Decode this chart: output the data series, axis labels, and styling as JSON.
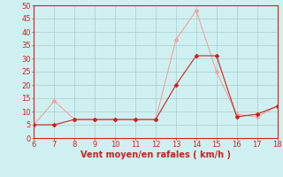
{
  "x": [
    6,
    7,
    8,
    9,
    10,
    11,
    12,
    13,
    14,
    15,
    16,
    17,
    18
  ],
  "rafales": [
    5,
    14,
    7,
    7,
    7,
    7,
    7,
    37,
    48,
    25,
    9,
    8,
    12
  ],
  "moyen": [
    5,
    5,
    7,
    7,
    7,
    7,
    7,
    20,
    31,
    31,
    8,
    9,
    12
  ],
  "color_rafales": "#f4a0a0",
  "color_moyen": "#cc2222",
  "bg_color": "#cff0f0",
  "grid_color": "#aacccc",
  "axis_color": "#cc2222",
  "xlabel": "Vent moyen/en rafales ( km/h )",
  "ylim": [
    0,
    50
  ],
  "xlim": [
    6,
    18
  ],
  "yticks": [
    0,
    5,
    10,
    15,
    20,
    25,
    30,
    35,
    40,
    45,
    50
  ],
  "xticks": [
    6,
    7,
    8,
    9,
    10,
    11,
    12,
    13,
    14,
    15,
    16,
    17,
    18
  ],
  "label_fontsize": 7,
  "tick_fontsize": 6
}
